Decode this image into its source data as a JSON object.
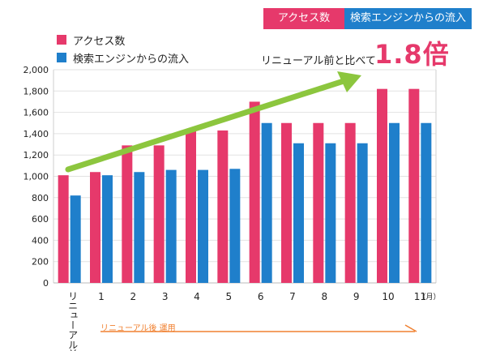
{
  "tags": {
    "access": "アクセス数",
    "search": "検索エンジンからの流入"
  },
  "note": "リニューアル前と比べて",
  "growth": "1.8倍",
  "ops_label": "リニューアル後 運用",
  "month_unit": "（月）",
  "colors": {
    "pink": "#e6396b",
    "blue": "#1f7fcb",
    "arrow": "#8cc63e",
    "ops": "#f08030"
  },
  "chart_data": {
    "type": "bar",
    "categories": [
      "リニューアル前",
      "1",
      "2",
      "3",
      "4",
      "5",
      "6",
      "7",
      "8",
      "9",
      "10",
      "11"
    ],
    "series": [
      {
        "name": "アクセス数",
        "values": [
          1010,
          1040,
          1290,
          1290,
          1430,
          1430,
          1700,
          1500,
          1500,
          1500,
          1820,
          1820
        ]
      },
      {
        "name": "検索エンジンからの流入",
        "values": [
          820,
          1010,
          1040,
          1060,
          1060,
          1070,
          1500,
          1310,
          1310,
          1310,
          1500,
          1500
        ]
      }
    ],
    "ylim": [
      0,
      2000
    ],
    "yticks": [
      0,
      200,
      400,
      600,
      800,
      1000,
      1200,
      1400,
      1600,
      1800,
      2000
    ],
    "grid": true
  }
}
